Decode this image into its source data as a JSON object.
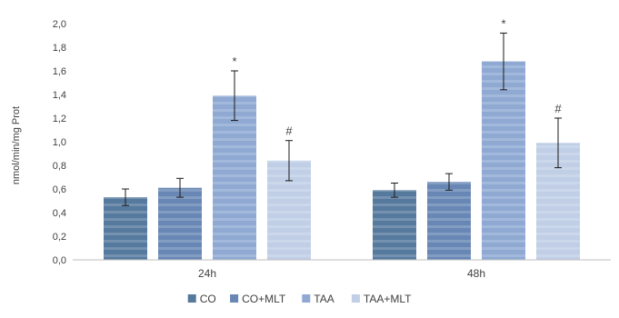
{
  "chart_data": {
    "type": "bar",
    "title": "",
    "xlabel": "",
    "ylabel": "nmol/min/mg Prot",
    "ylim": [
      0,
      2.0
    ],
    "yticks": [
      "0,0",
      "0,2",
      "0,4",
      "0,6",
      "0,8",
      "1,0",
      "1,2",
      "1,4",
      "1,6",
      "1,8",
      "2,0"
    ],
    "grid": false,
    "legend_position": "bottom",
    "categories": [
      "24h",
      "48h"
    ],
    "series": [
      {
        "name": "CO",
        "values": [
          0.53,
          0.59
        ],
        "errors": [
          0.07,
          0.06
        ],
        "annotations": [
          "",
          ""
        ],
        "color": "#56799e"
      },
      {
        "name": "CO+MLT",
        "values": [
          0.61,
          0.66
        ],
        "errors": [
          0.08,
          0.07
        ],
        "annotations": [
          "",
          ""
        ],
        "color": "#6887b4"
      },
      {
        "name": "TAA",
        "values": [
          1.39,
          1.68
        ],
        "errors": [
          0.21,
          0.24
        ],
        "annotations": [
          "*",
          "*"
        ],
        "color": "#8fa9d3"
      },
      {
        "name": "TAA+MLT",
        "values": [
          0.84,
          0.99
        ],
        "errors": [
          0.17,
          0.21
        ],
        "annotations": [
          "#",
          "#"
        ],
        "color": "#c0cee6"
      }
    ]
  }
}
